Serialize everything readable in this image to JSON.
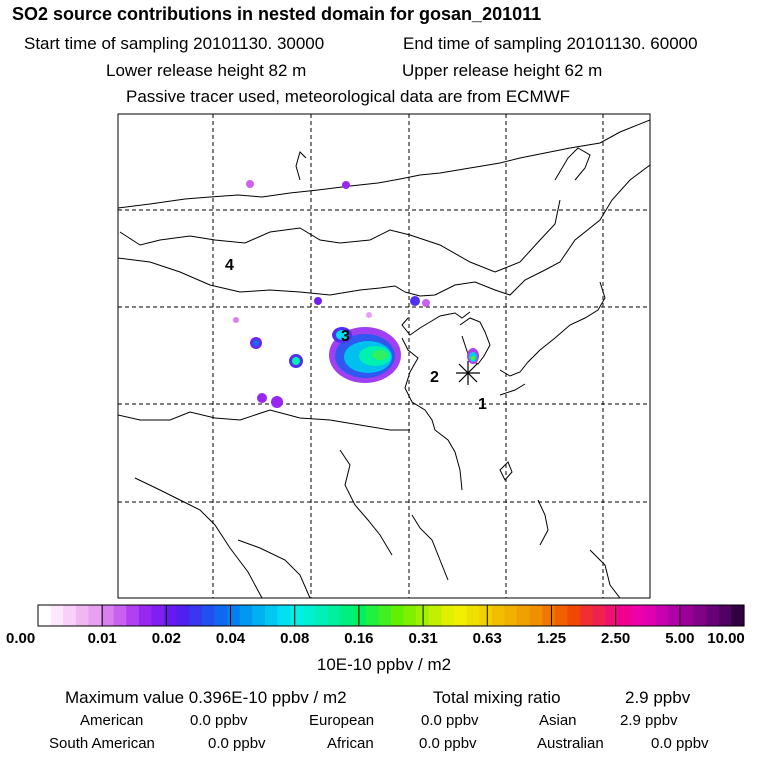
{
  "header": {
    "title": "SO2 source contributions in nested domain for gosan_201011",
    "start_label": "Start time of sampling 20101130. 30000",
    "end_label": "End time of sampling 20101130. 60000",
    "lower_label": "Lower release height   82 m",
    "upper_label": "Upper release height   62 m",
    "tracer_note": "Passive tracer used, meteorological data are from ECMWF"
  },
  "map": {
    "region_labels": [
      "1",
      "2",
      "3",
      "4"
    ],
    "receptor_symbol": "star-icon"
  },
  "colorbar": {
    "ticks": [
      "0.00",
      "0.01",
      "0.02",
      "0.04",
      "0.08",
      "0.16",
      "0.31",
      "0.63",
      "1.25",
      "2.50",
      "5.00",
      "10.00"
    ],
    "units": "10E-10 ppbv / m2",
    "colors": [
      "#ffffff",
      "#fde8fd",
      "#f8d0f8",
      "#f0b8f0",
      "#e8a0f0",
      "#d880f0",
      "#c860f0",
      "#b040f0",
      "#9828f0",
      "#8020f0",
      "#6818f0",
      "#5020f0",
      "#3838f0",
      "#2050f0",
      "#1068f0",
      "#0080f0",
      "#0098f0",
      "#00b0f0",
      "#00c8f0",
      "#00e0f0",
      "#00f0e8",
      "#00f0d0",
      "#00f0b8",
      "#00f0a0",
      "#00f080",
      "#00f060",
      "#20f040",
      "#40f020",
      "#60f000",
      "#80f000",
      "#a0f000",
      "#c0f000",
      "#e0f000",
      "#f0f000",
      "#f0e000",
      "#f0d000",
      "#f0c000",
      "#f0b000",
      "#f0a000",
      "#f09000",
      "#f07800",
      "#f06000",
      "#f04800",
      "#f03030",
      "#f02050",
      "#f01070",
      "#f00090",
      "#f000a8",
      "#e000b0",
      "#c800b0",
      "#b000a8",
      "#980098",
      "#800088",
      "#680078",
      "#500060",
      "#300040"
    ]
  },
  "summary": {
    "max_label": "Maximum value  0.396E-10 ppbv / m2",
    "total_label": "Total mixing ratio",
    "total_value": "2.9 ppbv",
    "regions": [
      {
        "name": "American",
        "value": "0.0 ppbv"
      },
      {
        "name": "European",
        "value": "0.0 ppbv"
      },
      {
        "name": "Asian",
        "value": "2.9 ppbv"
      },
      {
        "name": "South American",
        "value": "0.0 ppbv"
      },
      {
        "name": "African",
        "value": "0.0 ppbv"
      },
      {
        "name": "Australian",
        "value": "0.0 ppbv"
      }
    ]
  }
}
